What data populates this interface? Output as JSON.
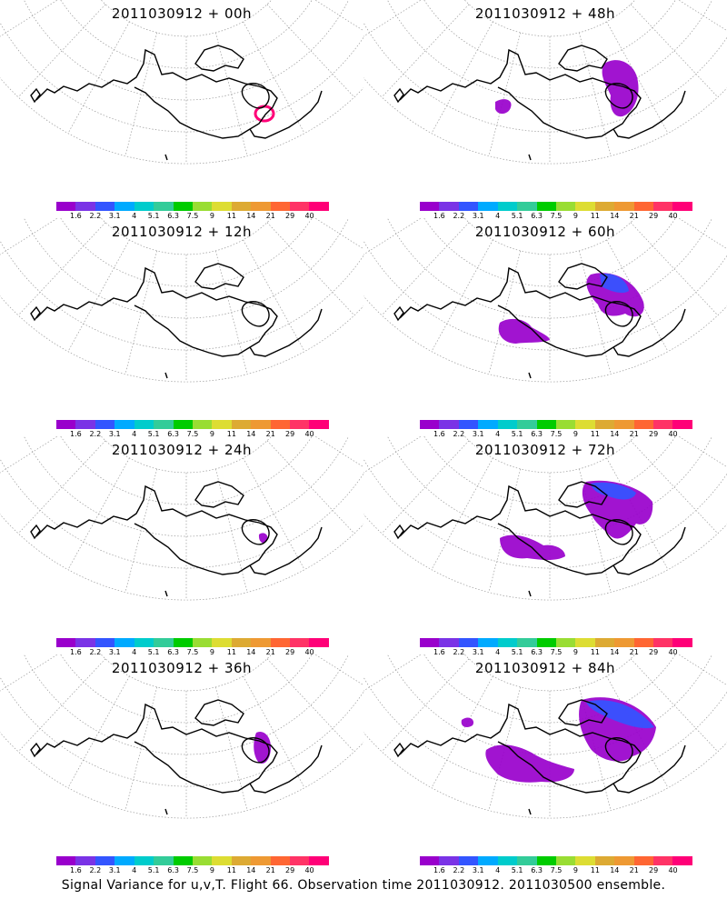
{
  "panels": [
    {
      "title": "2011030912 + 00h"
    },
    {
      "title": "2011030912 + 48h"
    },
    {
      "title": "2011030912 + 12h"
    },
    {
      "title": "2011030912 + 60h"
    },
    {
      "title": "2011030912 + 24h"
    },
    {
      "title": "2011030912 + 72h"
    },
    {
      "title": "2011030912 + 36h"
    },
    {
      "title": "2011030912 + 84h"
    }
  ],
  "colorbar": {
    "colors": [
      "#9900cc",
      "#7a33e6",
      "#3355ff",
      "#00aaff",
      "#00cccc",
      "#33cc99",
      "#00cc00",
      "#99dd33",
      "#dddd33",
      "#ddaa33",
      "#ee9933",
      "#ff6633",
      "#ff3366",
      "#ff0077"
    ],
    "labels": [
      "1.6",
      "2.2",
      "3.1",
      "4",
      "5.1",
      "6.3",
      "7.5",
      "9",
      "11",
      "14",
      "21",
      "29",
      "40"
    ]
  },
  "footer": "Signal Variance for u,v,T. Flight 66. Observation time 2011030912. 2011030500 ensemble."
}
